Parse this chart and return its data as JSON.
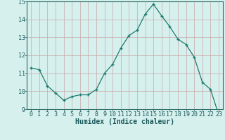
{
  "x": [
    0,
    1,
    2,
    3,
    4,
    5,
    6,
    7,
    8,
    9,
    10,
    11,
    12,
    13,
    14,
    15,
    16,
    17,
    18,
    19,
    20,
    21,
    22,
    23
  ],
  "y": [
    11.3,
    11.2,
    10.3,
    9.9,
    9.5,
    9.7,
    9.8,
    9.8,
    10.1,
    11.0,
    11.5,
    12.4,
    13.1,
    13.4,
    14.3,
    14.85,
    14.2,
    13.6,
    12.9,
    12.6,
    11.9,
    10.5,
    10.1,
    8.7
  ],
  "line_color": "#1e7a6e",
  "marker_color": "#1e7a6e",
  "bg_color": "#d6f0ee",
  "grid_color": "#b8d8d4",
  "xlabel": "Humidex (Indice chaleur)",
  "ylim": [
    9,
    15
  ],
  "xlim": [
    -0.5,
    23.5
  ],
  "yticks": [
    9,
    10,
    11,
    12,
    13,
    14,
    15
  ],
  "xticks": [
    0,
    1,
    2,
    3,
    4,
    5,
    6,
    7,
    8,
    9,
    10,
    11,
    12,
    13,
    14,
    15,
    16,
    17,
    18,
    19,
    20,
    21,
    22,
    23
  ],
  "xlabel_fontsize": 7,
  "tick_fontsize": 6
}
